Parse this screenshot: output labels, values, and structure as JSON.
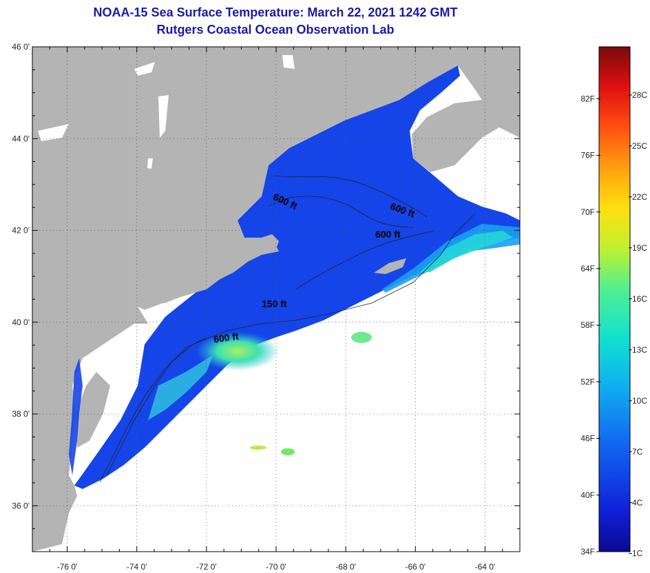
{
  "header": {
    "title": "NOAA-15 Sea Surface Temperature:  March 22, 2021 1242 GMT",
    "subtitle": "Rutgers Coastal Ocean Observation Lab"
  },
  "map": {
    "lon_range": [
      -77,
      -63
    ],
    "lat_range": [
      35,
      46
    ],
    "lat_labels": [
      "46 0'",
      "44 0'",
      "42 0'",
      "40 0'",
      "38 0'",
      "36 0'"
    ],
    "lat_values": [
      46,
      44,
      42,
      40,
      38,
      36
    ],
    "lon_labels": [
      "-76 0'",
      "-74 0'",
      "-72 0'",
      "-70 0'",
      "-68 0'",
      "-66 0'",
      "-64 0'"
    ],
    "lon_values": [
      -76,
      -74,
      -72,
      -70,
      -68,
      -66,
      -64
    ],
    "contour_labels": [
      "600 ft",
      "600 ft",
      "600 ft",
      "150 ft",
      "600 ft"
    ],
    "land_color": "#b4b4b4",
    "grid": true
  },
  "colorbar": {
    "fahrenheit_labels": [
      "82F",
      "76F",
      "70F",
      "64F",
      "58F",
      "52F",
      "46F",
      "40F",
      "34F"
    ],
    "celsius_labels": [
      "28C",
      "25C",
      "22C",
      "19C",
      "16C",
      "13C",
      "10C",
      "7C",
      "4C",
      "1C"
    ],
    "colors": [
      "#7a0a0a",
      "#e01010",
      "#ff6010",
      "#ffc010",
      "#e8ff20",
      "#60ff80",
      "#10e0e0",
      "#1090f0",
      "#1040f0",
      "#0a0a90"
    ]
  }
}
